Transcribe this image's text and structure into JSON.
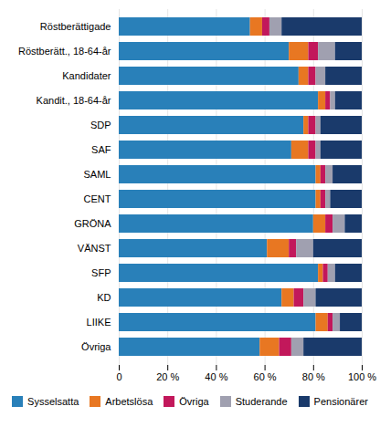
{
  "chart_data": {
    "type": "bar",
    "orientation": "horizontal",
    "stacked": true,
    "categories": [
      "Röstberättigade",
      "Röstberätt., 18-64-år",
      "Kandidater",
      "Kandit., 18-64-år",
      "SDP",
      "SAF",
      "SAML",
      "CENT",
      "GRÖNA",
      "VÄNST",
      "SFP",
      "KD",
      "LIIKE",
      "Övriga"
    ],
    "series": [
      {
        "name": "Sysselsatta",
        "color": "#2980b9",
        "values": [
          54,
          70,
          74,
          82,
          76,
          71,
          81,
          81,
          80,
          61,
          82,
          67,
          81,
          58
        ]
      },
      {
        "name": "Arbetslösa",
        "color": "#e87722",
        "values": [
          5,
          8,
          4,
          3,
          2,
          7,
          2,
          2,
          5,
          9,
          2,
          5,
          5,
          8
        ]
      },
      {
        "name": "Övriga",
        "color": "#c2185b",
        "values": [
          3,
          4,
          3,
          2,
          3,
          3,
          2,
          2,
          3,
          3,
          2,
          4,
          2,
          5
        ]
      },
      {
        "name": "Studerande",
        "color": "#a0a0b0",
        "values": [
          5,
          7,
          4,
          2,
          2,
          2,
          3,
          2,
          5,
          7,
          3,
          5,
          3,
          5
        ]
      },
      {
        "name": "Pensionärer",
        "color": "#1a3a6b",
        "values": [
          33,
          11,
          15,
          11,
          17,
          17,
          12,
          13,
          7,
          20,
          11,
          19,
          9,
          24
        ]
      }
    ],
    "xlim": [
      0,
      100
    ],
    "xticks": [
      0,
      {
        "value": 20,
        "label": "20 %"
      },
      {
        "value": 40,
        "label": "40 %"
      },
      {
        "value": 60,
        "label": "60 %"
      },
      {
        "value": 80,
        "label": "80 %"
      },
      {
        "value": 100,
        "label": "100 %"
      }
    ],
    "grid": true,
    "legend": "bottom"
  }
}
